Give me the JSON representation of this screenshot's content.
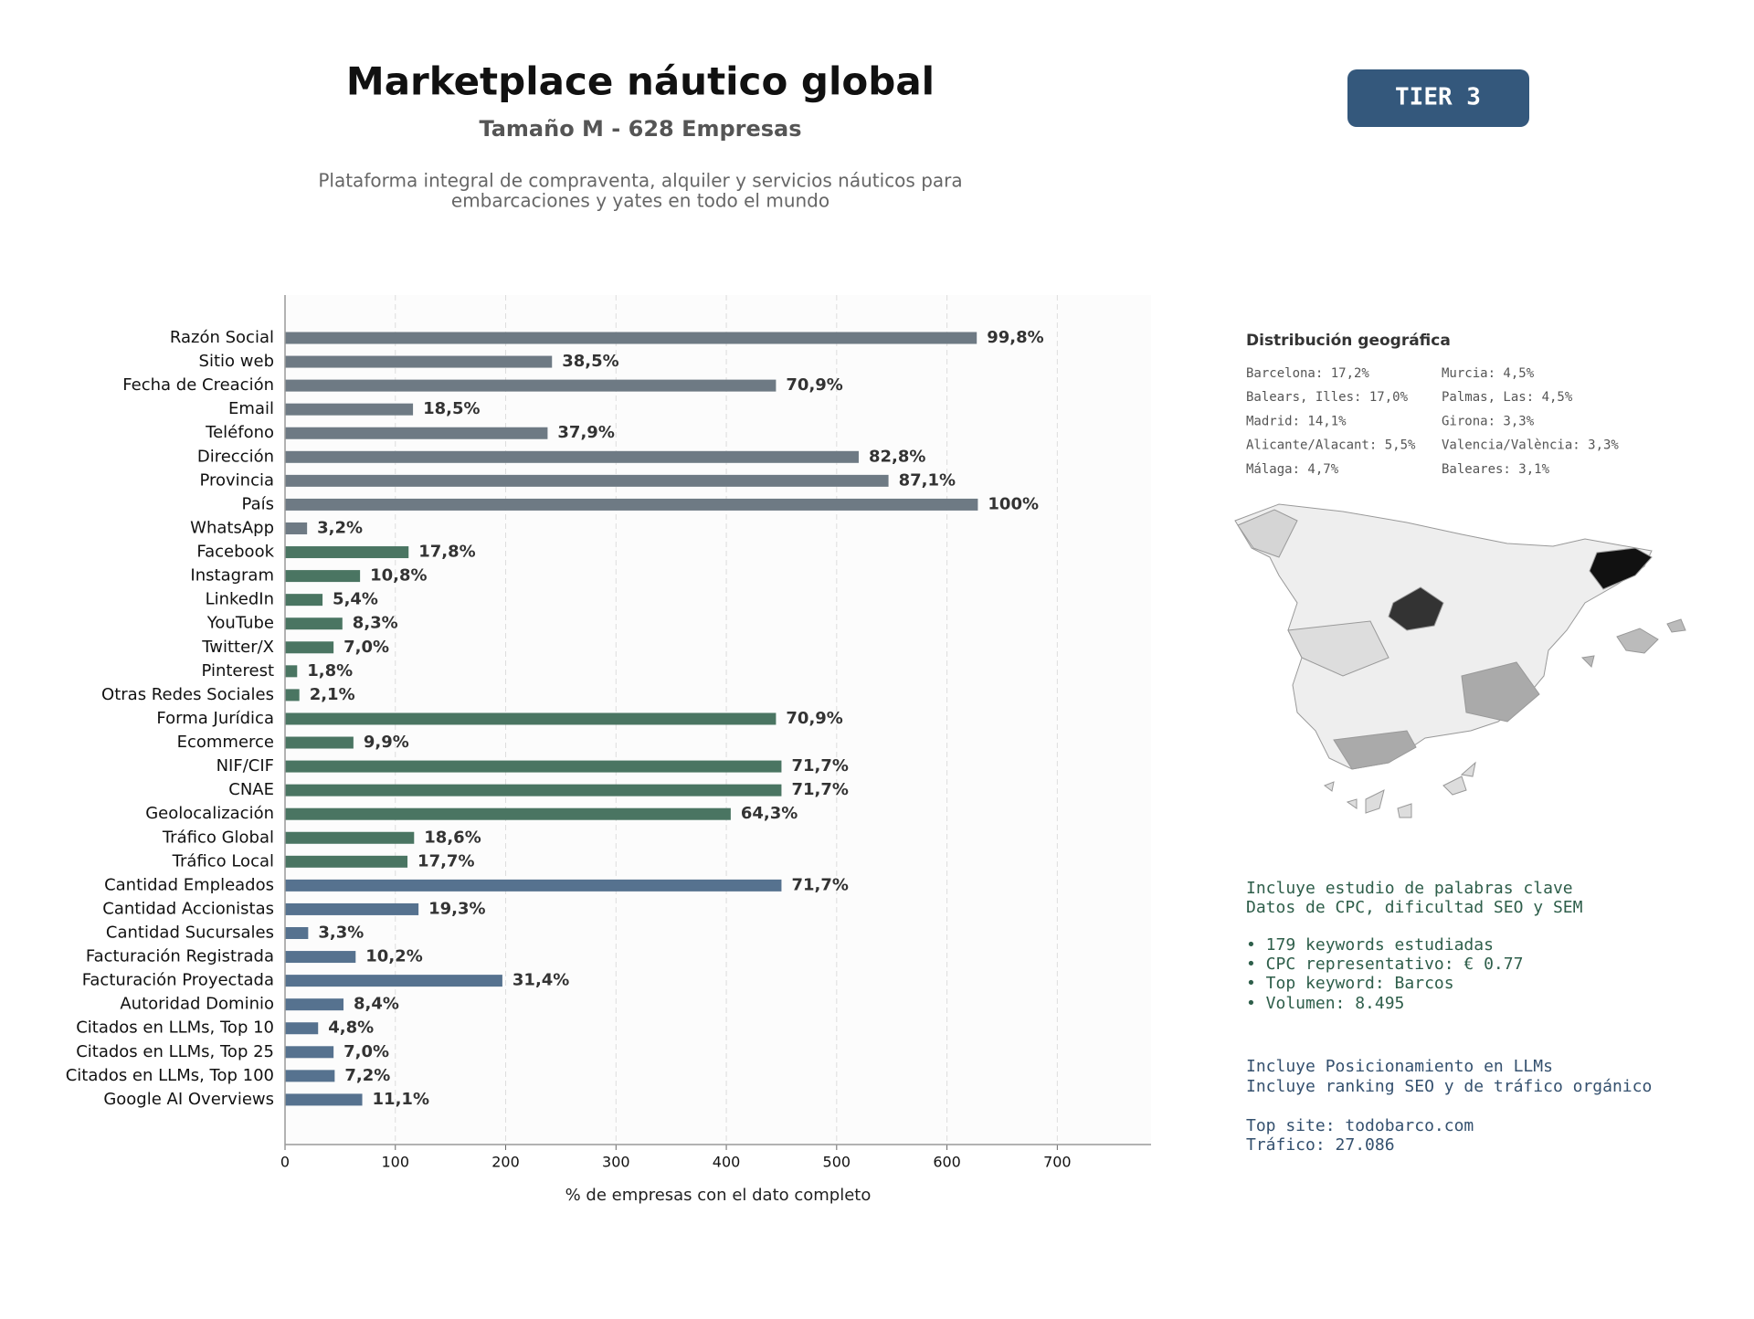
{
  "chart_data": {
    "type": "bar",
    "orientation": "horizontal",
    "title": "Marketplace náutico global",
    "subtitle": "Tamaño M - 628 Empresas",
    "description": [
      "Plataforma integral de compraventa, alquiler y servicios náuticos para",
      "embarcaciones y yates en todo el mundo"
    ],
    "badge": "TIER 3",
    "xlabel": "% de empresas con el dato completo",
    "categories": [
      "Razón Social",
      "Sitio web",
      "Fecha de Creación",
      "Email",
      "Teléfono",
      "Dirección",
      "Provincia",
      "País",
      "WhatsApp",
      "Facebook",
      "Instagram",
      "LinkedIn",
      "YouTube",
      "Twitter/X",
      "Pinterest",
      "Otras Redes Sociales",
      "Forma Jurídica",
      "Ecommerce",
      "NIF/CIF",
      "CNAE",
      "Geolocalización",
      "Tráfico Global",
      "Tráfico Local",
      "Cantidad Empleados",
      "Cantidad Accionistas",
      "Cantidad Sucursales",
      "Facturación Registrada",
      "Facturación Proyectada",
      "Autoridad Dominio",
      "Citados en LLMs, Top 10",
      "Citados en LLMs, Top 25",
      "Citados en LLMs, Top 100",
      "Google AI Overviews"
    ],
    "values": [
      627,
      242,
      445,
      116,
      238,
      520,
      547,
      628,
      20,
      112,
      68,
      34,
      52,
      44,
      11,
      13,
      445,
      62,
      450,
      450,
      404,
      117,
      111,
      450,
      121,
      21,
      64,
      197,
      53,
      30,
      44,
      45,
      70
    ],
    "value_labels": [
      "99,8%",
      "38,5%",
      "70,9%",
      "18,5%",
      "37,9%",
      "82,8%",
      "87,1%",
      "100%",
      "3,2%",
      "17,8%",
      "10,8%",
      "5,4%",
      "8,3%",
      "7,0%",
      "1,8%",
      "2,1%",
      "70,9%",
      "9,9%",
      "71,7%",
      "71,7%",
      "64,3%",
      "18,6%",
      "17,7%",
      "71,7%",
      "19,3%",
      "3,3%",
      "10,2%",
      "31,4%",
      "8,4%",
      "4,8%",
      "7,0%",
      "7,2%",
      "11,1%"
    ],
    "colors": [
      "#6e7a84",
      "#6e7a84",
      "#6e7a84",
      "#6e7a84",
      "#6e7a84",
      "#6e7a84",
      "#6e7a84",
      "#6e7a84",
      "#6e7a84",
      "#4a7562",
      "#4a7562",
      "#4a7562",
      "#4a7562",
      "#4a7562",
      "#4a7562",
      "#4a7562",
      "#4a7562",
      "#4a7562",
      "#4a7562",
      "#4a7562",
      "#4a7562",
      "#4a7562",
      "#4a7562",
      "#56728f",
      "#56728f",
      "#56728f",
      "#56728f",
      "#56728f",
      "#56728f",
      "#56728f",
      "#56728f",
      "#56728f",
      "#56728f"
    ],
    "xlim": [
      0,
      785
    ],
    "xticks": [
      0,
      100,
      200,
      300,
      400,
      500,
      600,
      700
    ],
    "grid": true
  },
  "geo": {
    "title": "Distribución geográfica",
    "items": [
      "Barcelona: 17,2%",
      "Balears, Illes: 17,0%",
      "Madrid: 14,1%",
      "Alicante/Alacant: 5,5%",
      "Málaga: 4,7%",
      "Murcia: 4,5%",
      "Palmas, Las: 4,5%",
      "Girona: 3,3%",
      "Valencia/València: 3,3%",
      "Baleares: 3,1%"
    ]
  },
  "keywords": [
    "Incluye estudio de palabras clave",
    "Datos de CPC, dificultad SEO y SEM",
    "• 179 keywords estudiadas",
    "• CPC representativo: € 0.77",
    "• Top keyword: Barcos",
    "• Volumen: 8.495"
  ],
  "llm": [
    "Incluye Posicionamiento en LLMs",
    "Incluye ranking SEO y de tráfico orgánico",
    "Top site: todobarco.com",
    "Tráfico: 27.086"
  ]
}
